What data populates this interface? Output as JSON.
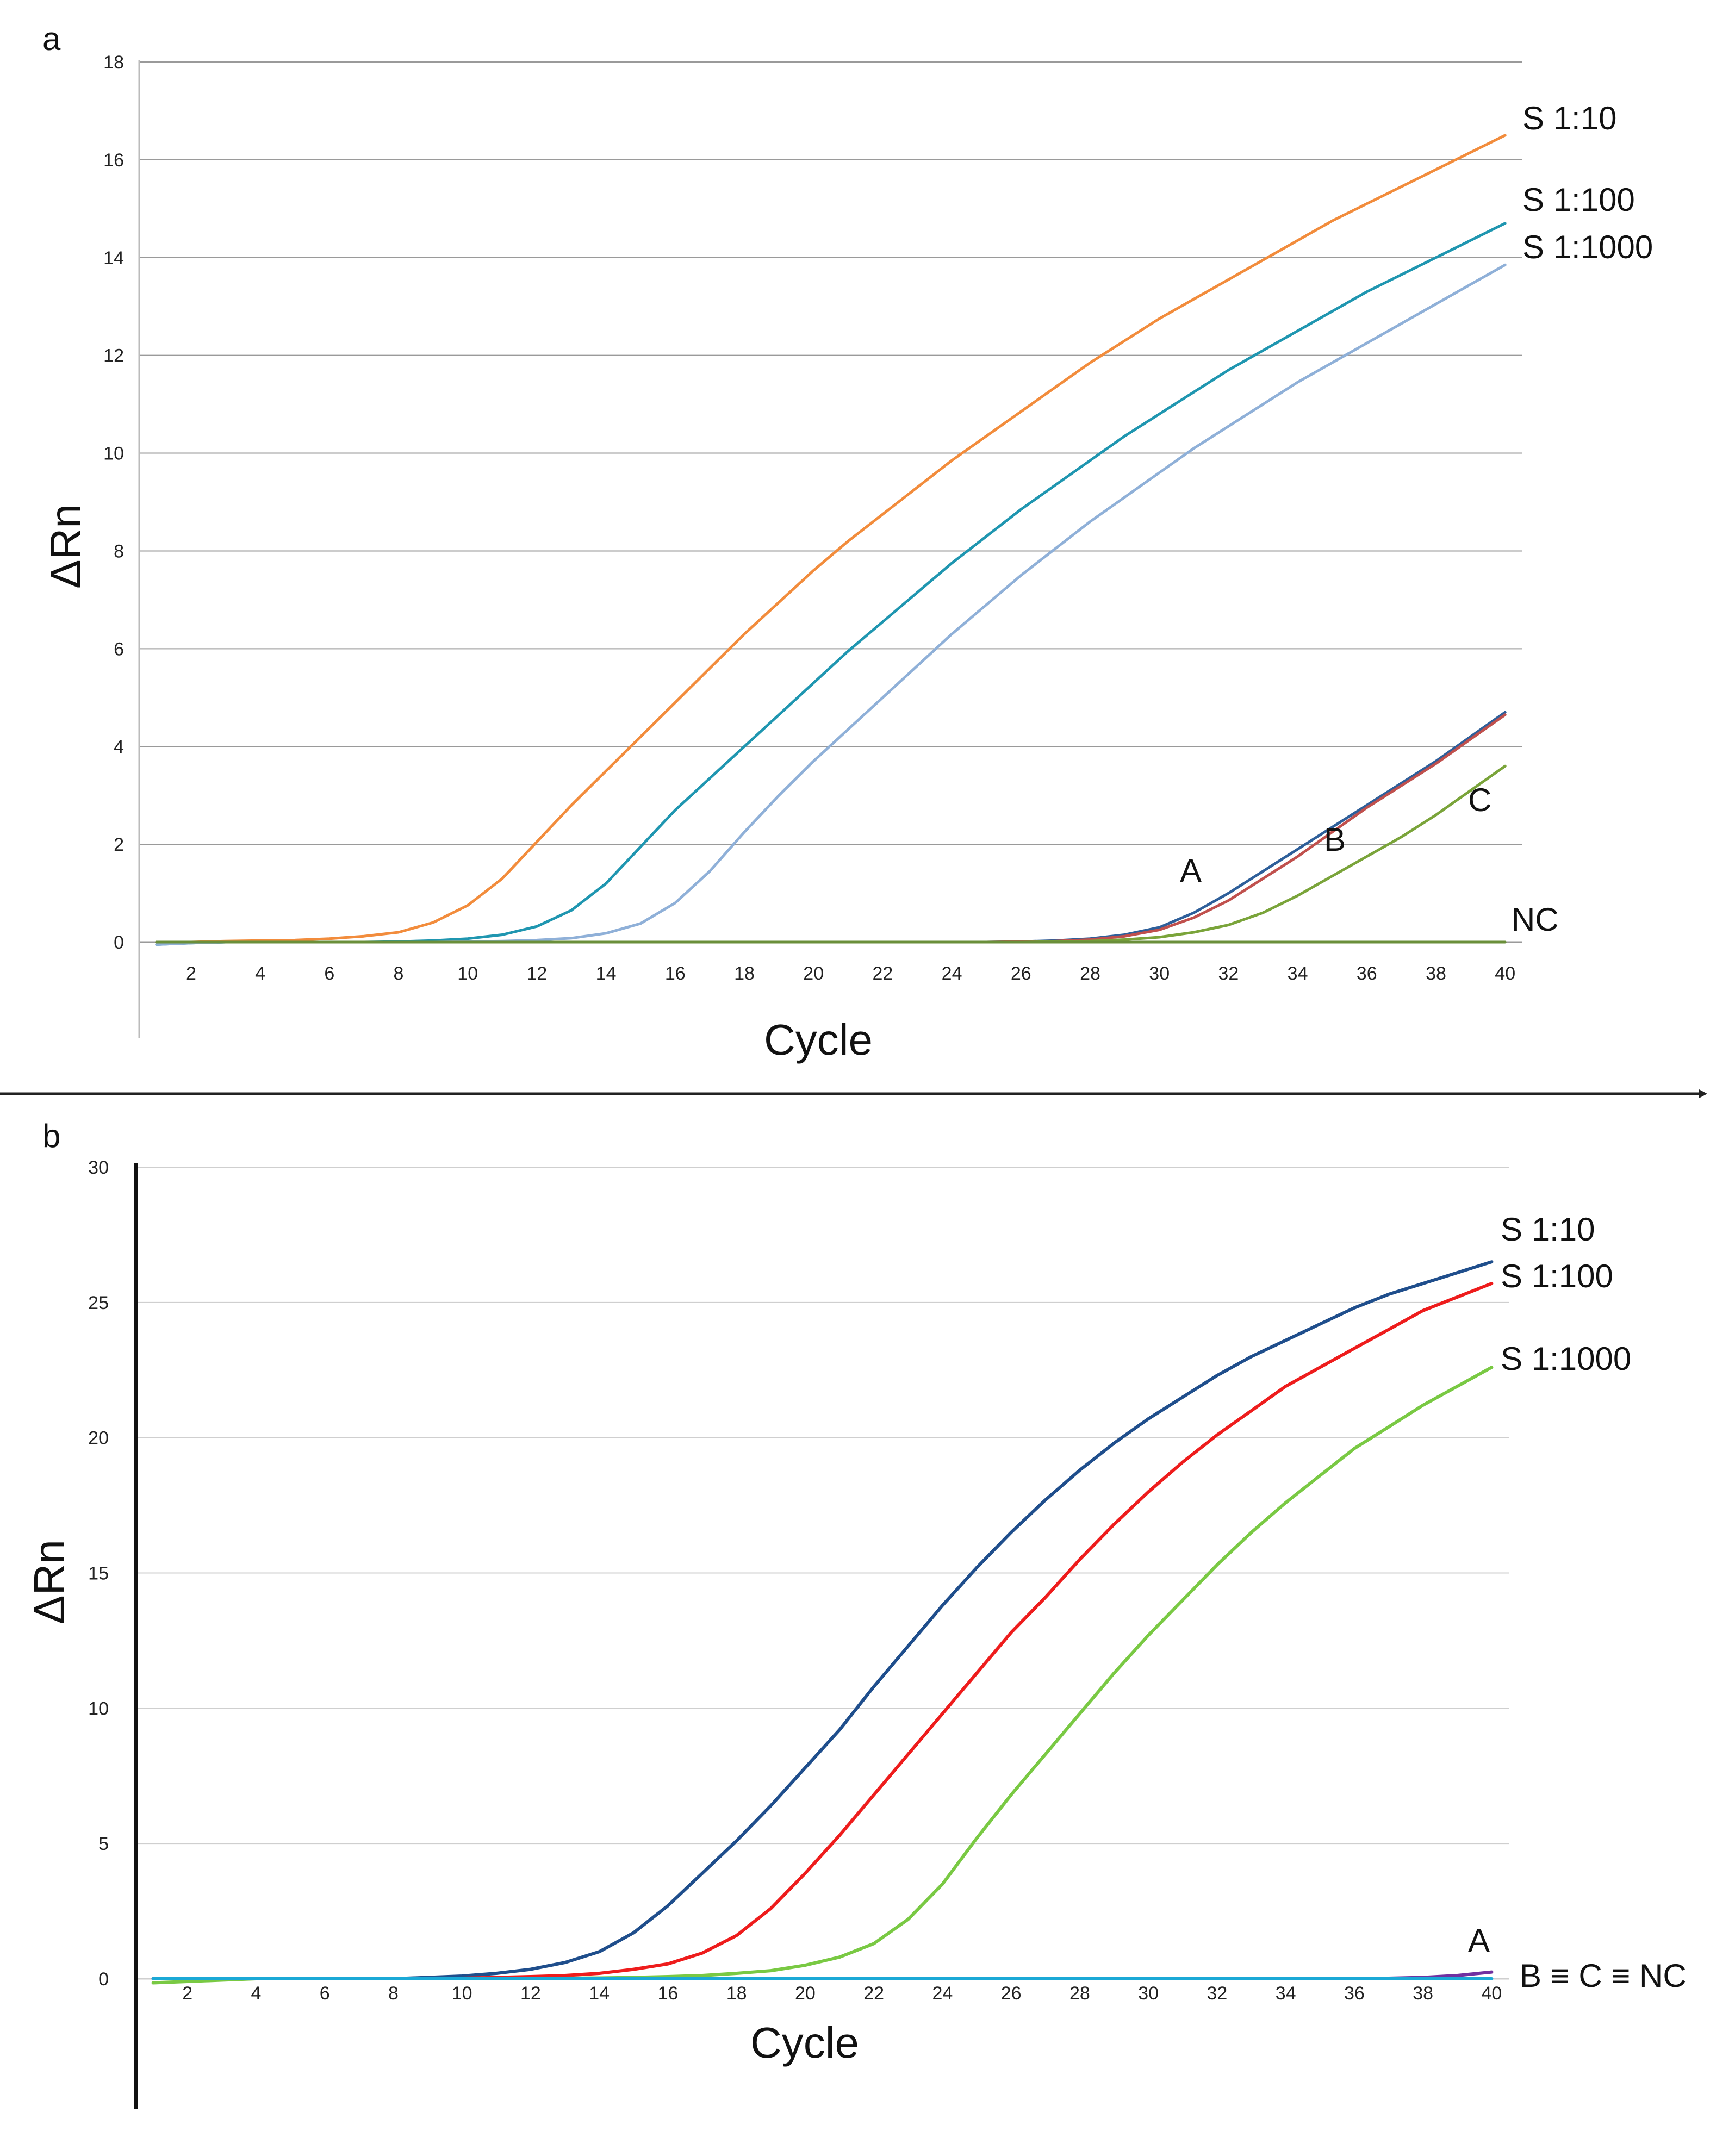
{
  "chart_data": [
    {
      "type": "line",
      "panel": "a",
      "xlabel": "Cycle",
      "ylabel": "ΔRn",
      "xlim": [
        0.5,
        40.5
      ],
      "ylim": [
        -2,
        18
      ],
      "yticks": [
        0,
        2,
        4,
        6,
        8,
        10,
        12,
        14,
        16,
        18
      ],
      "xticks": [
        2,
        4,
        6,
        8,
        10,
        12,
        14,
        16,
        18,
        20,
        22,
        24,
        26,
        28,
        30,
        32,
        34,
        36,
        38,
        40
      ],
      "x": [
        1,
        2,
        3,
        4,
        5,
        6,
        7,
        8,
        9,
        10,
        11,
        12,
        13,
        14,
        15,
        16,
        17,
        18,
        19,
        20,
        21,
        22,
        23,
        24,
        25,
        26,
        27,
        28,
        29,
        30,
        31,
        32,
        33,
        34,
        35,
        36,
        37,
        38,
        39,
        40
      ],
      "series": [
        {
          "name": "S 1:10",
          "color": "#f28c3c",
          "values": [
            0,
            0,
            0.02,
            0.03,
            0.04,
            0.07,
            0.12,
            0.2,
            0.4,
            0.75,
            1.3,
            2.05,
            2.8,
            3.5,
            4.2,
            4.9,
            5.6,
            6.3,
            6.95,
            7.6,
            8.2,
            8.75,
            9.3,
            9.85,
            10.35,
            10.85,
            11.35,
            11.85,
            12.3,
            12.75,
            13.15,
            13.55,
            13.95,
            14.35,
            14.75,
            15.1,
            15.45,
            15.8,
            16.15,
            16.5
          ]
        },
        {
          "name": "S 1:100",
          "color": "#1f96b0",
          "values": [
            -0.05,
            -0.02,
            0,
            0,
            0,
            0,
            0,
            0.01,
            0.03,
            0.07,
            0.15,
            0.32,
            0.65,
            1.2,
            1.95,
            2.7,
            3.35,
            4.0,
            4.65,
            5.3,
            5.95,
            6.55,
            7.15,
            7.75,
            8.3,
            8.85,
            9.35,
            9.85,
            10.35,
            10.8,
            11.25,
            11.7,
            12.1,
            12.5,
            12.9,
            13.3,
            13.65,
            14.0,
            14.35,
            14.7
          ]
        },
        {
          "name": "S 1:1000",
          "color": "#8fb0d8",
          "values": [
            -0.05,
            -0.02,
            0,
            0,
            0,
            0,
            0,
            0,
            0,
            0.01,
            0.02,
            0.04,
            0.08,
            0.18,
            0.38,
            0.8,
            1.45,
            2.25,
            3.0,
            3.7,
            4.35,
            5.0,
            5.65,
            6.3,
            6.9,
            7.5,
            8.05,
            8.6,
            9.1,
            9.6,
            10.1,
            10.55,
            11.0,
            11.45,
            11.85,
            12.25,
            12.65,
            13.05,
            13.45,
            13.85
          ]
        },
        {
          "name": "A",
          "color": "#2e5f9a",
          "values": [
            0,
            0,
            0,
            0,
            0,
            0,
            0,
            0,
            0,
            0,
            0,
            0,
            0,
            0,
            0,
            0,
            0,
            0,
            0,
            0,
            0,
            0,
            0,
            0,
            0,
            0.01,
            0.03,
            0.07,
            0.15,
            0.3,
            0.6,
            1.0,
            1.45,
            1.9,
            2.35,
            2.8,
            3.25,
            3.7,
            4.2,
            4.7
          ]
        },
        {
          "name": "B",
          "color": "#c0504d",
          "values": [
            0,
            0,
            0,
            0,
            0,
            0,
            0,
            0,
            0,
            0,
            0,
            0,
            0,
            0,
            0,
            0,
            0,
            0,
            0,
            0,
            0,
            0,
            0,
            0,
            0,
            0.01,
            0.02,
            0.05,
            0.12,
            0.25,
            0.5,
            0.85,
            1.3,
            1.75,
            2.25,
            2.75,
            3.2,
            3.65,
            4.15,
            4.65
          ]
        },
        {
          "name": "C",
          "color": "#7aa43a",
          "values": [
            0,
            0,
            0,
            0,
            0,
            0,
            0,
            0,
            0,
            0,
            0,
            0,
            0,
            0,
            0,
            0,
            0,
            0,
            0,
            0,
            0,
            0,
            0,
            0,
            0,
            0,
            0.01,
            0.02,
            0.05,
            0.1,
            0.2,
            0.35,
            0.6,
            0.95,
            1.35,
            1.75,
            2.15,
            2.6,
            3.1,
            3.6
          ]
        },
        {
          "name": "NC",
          "color": "#6a8f3a",
          "values": [
            0,
            0,
            0,
            0,
            0,
            0,
            0,
            0,
            0,
            0,
            0,
            0,
            0,
            0,
            0,
            0,
            0,
            0,
            0,
            0,
            0,
            0,
            0,
            0,
            0,
            0,
            0,
            0,
            0,
            0,
            0,
            0,
            0,
            0,
            0,
            0,
            0,
            0,
            0,
            0
          ]
        }
      ],
      "annotations": [
        "S 1:10",
        "S 1:100",
        "S 1:1000",
        "A",
        "B",
        "C",
        "NC"
      ]
    },
    {
      "type": "line",
      "panel": "b",
      "xlabel": "Cycle",
      "ylabel": "ΔRn",
      "xlim": [
        0.5,
        40.5
      ],
      "ylim": [
        -5,
        30
      ],
      "yticks": [
        0,
        5,
        10,
        15,
        20,
        25,
        30
      ],
      "xticks": [
        2,
        4,
        6,
        8,
        10,
        12,
        14,
        16,
        18,
        20,
        22,
        24,
        26,
        28,
        30,
        32,
        34,
        36,
        38,
        40
      ],
      "x": [
        1,
        2,
        3,
        4,
        5,
        6,
        7,
        8,
        9,
        10,
        11,
        12,
        13,
        14,
        15,
        16,
        17,
        18,
        19,
        20,
        21,
        22,
        23,
        24,
        25,
        26,
        27,
        28,
        29,
        30,
        31,
        32,
        33,
        34,
        35,
        36,
        37,
        38,
        39,
        40
      ],
      "series": [
        {
          "name": "S 1:10",
          "color": "#1f4e8c",
          "values": [
            0,
            0,
            0,
            0,
            0,
            0,
            0,
            0,
            0.05,
            0.1,
            0.2,
            0.35,
            0.6,
            1.0,
            1.7,
            2.7,
            3.9,
            5.1,
            6.4,
            7.8,
            9.2,
            10.8,
            12.3,
            13.8,
            15.2,
            16.5,
            17.7,
            18.8,
            19.8,
            20.7,
            21.5,
            22.3,
            23.0,
            23.6,
            24.2,
            24.8,
            25.3,
            25.7,
            26.1,
            26.5
          ]
        },
        {
          "name": "S 1:100",
          "color": "#ee1c1c",
          "values": [
            0,
            0,
            0,
            0,
            0,
            0,
            0,
            0,
            0,
            0.02,
            0.05,
            0.08,
            0.12,
            0.2,
            0.35,
            0.55,
            0.95,
            1.6,
            2.6,
            3.9,
            5.3,
            6.8,
            8.3,
            9.8,
            11.3,
            12.8,
            14.1,
            15.5,
            16.8,
            18.0,
            19.1,
            20.1,
            21.0,
            21.9,
            22.6,
            23.3,
            24.0,
            24.7,
            25.2,
            25.7
          ]
        },
        {
          "name": "S 1:1000",
          "color": "#79c943",
          "values": [
            -0.15,
            -0.1,
            -0.05,
            0,
            0,
            0,
            0,
            0,
            0,
            0,
            0,
            0,
            0.02,
            0.03,
            0.05,
            0.08,
            0.12,
            0.2,
            0.3,
            0.5,
            0.8,
            1.3,
            2.2,
            3.5,
            5.2,
            6.8,
            8.3,
            9.8,
            11.3,
            12.7,
            14.0,
            15.3,
            16.5,
            17.6,
            18.6,
            19.6,
            20.4,
            21.2,
            21.9,
            22.6
          ]
        },
        {
          "name": "A",
          "color": "#7030a0",
          "values": [
            0,
            0,
            0,
            0,
            0,
            0,
            0,
            0,
            0,
            0,
            0,
            0,
            0,
            0,
            0,
            0,
            0,
            0,
            0,
            0,
            0,
            0,
            0,
            0,
            0,
            0,
            0,
            0,
            0,
            0,
            0,
            0,
            0,
            0,
            0,
            0,
            0.02,
            0.05,
            0.12,
            0.25
          ]
        },
        {
          "name": "B ≡ C ≡ NC",
          "color": "#1ba9d6",
          "values": [
            0,
            0,
            0,
            0,
            0,
            0,
            0,
            0,
            0,
            0,
            0,
            0,
            0,
            0,
            0,
            0,
            0,
            0,
            0,
            0,
            0,
            0,
            0,
            0,
            0,
            0,
            0,
            0,
            0,
            0,
            0,
            0,
            0,
            0,
            0,
            0,
            0,
            0,
            0,
            0
          ]
        }
      ],
      "annotations": [
        "S 1:10",
        "S 1:100",
        "S 1:1000",
        "A",
        "B ≡ C ≡ NC"
      ]
    }
  ]
}
